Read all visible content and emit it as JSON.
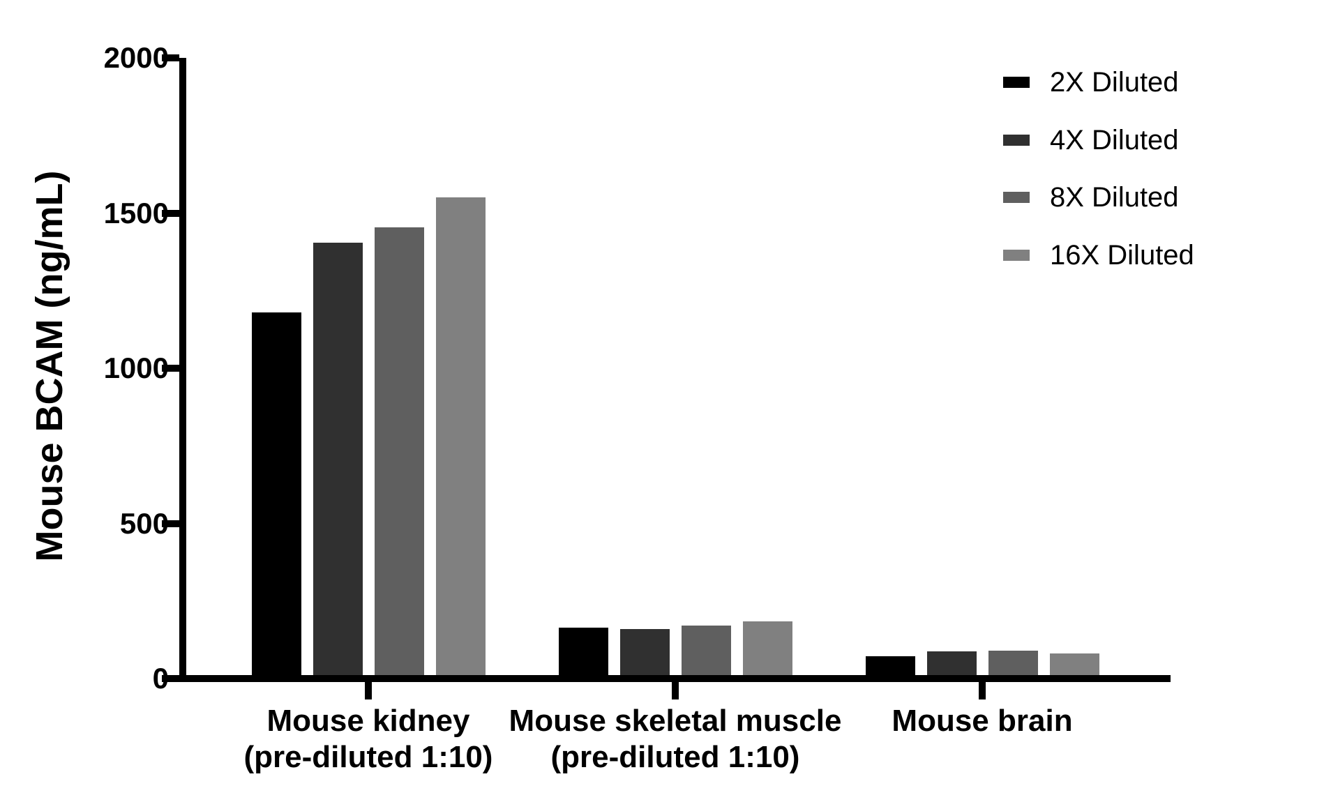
{
  "chart_data": {
    "type": "bar",
    "title": "",
    "ylabel": "Mouse BCAM (ng/mL)",
    "xlabel": "",
    "ylim": [
      0,
      2000
    ],
    "yticks": [
      0,
      500,
      1000,
      1500,
      2000
    ],
    "grid": false,
    "legend_position": "top-right",
    "categories": [
      [
        "Mouse kidney",
        "(pre-diluted 1:10)"
      ],
      [
        "Mouse skeletal muscle",
        "(pre-diluted 1:10)"
      ],
      [
        "Mouse brain"
      ]
    ],
    "series": [
      {
        "name": "2X Diluted",
        "color": "#000000",
        "values": [
          1180,
          165,
          72
        ]
      },
      {
        "name": "4X Diluted",
        "color": "#303030",
        "values": [
          1405,
          160,
          88
        ]
      },
      {
        "name": "8X Diluted",
        "color": "#5f5f5f",
        "values": [
          1455,
          170,
          90
        ]
      },
      {
        "name": "16X Diluted",
        "color": "#808080",
        "values": [
          1550,
          185,
          80
        ]
      }
    ]
  }
}
